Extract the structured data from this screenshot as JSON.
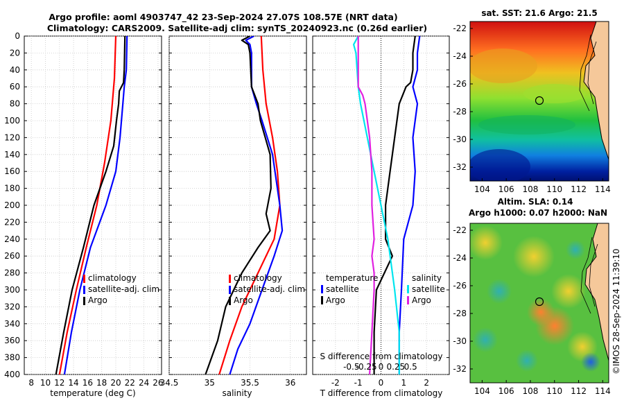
{
  "header": {
    "line1": "Argo profile: aoml 4903747_42 23-Sep-2024 27.07S 108.57E (NRT data)",
    "line2": "Climatology: CARS2009. Satellite-adj clim: synTS_20240923.nc (0.26d earlier)"
  },
  "colors": {
    "climatology": "#ff0000",
    "satellite": "#0000ff",
    "argo": "#000000",
    "sal_satellite": "#00e5ee",
    "sal_argo": "#e020e0"
  },
  "chart_data": [
    {
      "type": "line",
      "id": "temperature",
      "xlabel": "temperature (deg C)",
      "xlim": [
        7,
        26.5
      ],
      "xticks": [
        "8",
        "10",
        "12",
        "14",
        "16",
        "18",
        "20",
        "22",
        "24",
        "26"
      ],
      "ylim": [
        0,
        400
      ],
      "yticks": [
        "0",
        "20",
        "40",
        "60",
        "80",
        "100",
        "120",
        "140",
        "160",
        "180",
        "200",
        "220",
        "240",
        "260",
        "280",
        "300",
        "320",
        "340",
        "360",
        "380",
        "400"
      ],
      "legend": [
        "climatology",
        "satellite-adj. clim",
        "Argo"
      ],
      "series": [
        {
          "name": "climatology",
          "depth": [
            0,
            50,
            100,
            150,
            200,
            250,
            300,
            350,
            400
          ],
          "values": [
            20.0,
            19.8,
            19.3,
            18.4,
            17.3,
            15.8,
            14.4,
            13.1,
            12.0
          ]
        },
        {
          "name": "satellite-adj. clim",
          "depth": [
            0,
            40,
            60,
            80,
            120,
            160,
            200,
            250,
            300,
            350,
            400
          ],
          "values": [
            21.6,
            21.5,
            21.2,
            21.0,
            20.6,
            20.0,
            18.6,
            16.4,
            14.9,
            13.7,
            12.7
          ]
        },
        {
          "name": "Argo",
          "depth": [
            0,
            40,
            55,
            65,
            80,
            100,
            130,
            160,
            200,
            250,
            300,
            350,
            400
          ],
          "values": [
            21.3,
            21.2,
            21.1,
            20.5,
            20.4,
            20.1,
            19.7,
            18.6,
            16.9,
            15.4,
            13.8,
            12.6,
            11.5
          ]
        }
      ]
    },
    {
      "type": "line",
      "id": "salinity",
      "xlabel": "salinity",
      "xlim": [
        34.5,
        36.2
      ],
      "xticks": [
        "34.5",
        "35",
        "35.5",
        "36"
      ],
      "legend": [
        "climatology",
        "satellite-adj. clim",
        "Argo"
      ],
      "series": [
        {
          "name": "climatology",
          "depth": [
            0,
            40,
            80,
            120,
            160,
            200,
            240,
            280,
            320,
            360,
            400
          ],
          "values": [
            35.64,
            35.66,
            35.7,
            35.78,
            35.84,
            35.87,
            35.8,
            35.6,
            35.4,
            35.25,
            35.12
          ]
        },
        {
          "name": "satellite-adj. clim",
          "depth": [
            0,
            5,
            10,
            20,
            60,
            80,
            100,
            140,
            200,
            230,
            260,
            300,
            340,
            370,
            400
          ],
          "values": [
            35.55,
            35.45,
            35.5,
            35.52,
            35.52,
            35.58,
            35.65,
            35.78,
            35.87,
            35.9,
            35.8,
            35.65,
            35.5,
            35.35,
            35.25
          ]
        },
        {
          "name": "Argo",
          "depth": [
            0,
            5,
            10,
            20,
            60,
            80,
            100,
            140,
            180,
            210,
            230,
            250,
            280,
            320,
            360,
            400
          ],
          "values": [
            35.5,
            35.4,
            35.48,
            35.5,
            35.52,
            35.6,
            35.63,
            35.75,
            35.76,
            35.7,
            35.75,
            35.6,
            35.4,
            35.2,
            35.1,
            34.95
          ]
        }
      ]
    },
    {
      "type": "line",
      "id": "difference",
      "xlabel": "T difference from climatology",
      "xlabel_top": "S difference from climatology",
      "xlim": [
        -3,
        3
      ],
      "xticks": [
        "-2",
        "-1",
        "0",
        "1",
        "2"
      ],
      "xticks_top": [
        "-0.5",
        "-0.25",
        "0",
        "0.25",
        "0.5"
      ],
      "legend_temp_title": "temperature",
      "legend_sal_title": "salinity",
      "legend": [
        "satellite",
        "Argo"
      ],
      "series": [
        {
          "name": "T satellite",
          "depth": [
            0,
            20,
            40,
            60,
            80,
            120,
            160,
            200,
            240,
            300,
            350,
            400
          ],
          "values": [
            1.7,
            1.6,
            1.6,
            1.4,
            1.6,
            1.4,
            1.5,
            1.4,
            1.0,
            0.9,
            0.8,
            0.8
          ]
        },
        {
          "name": "T Argo",
          "depth": [
            0,
            20,
            40,
            55,
            60,
            80,
            120,
            160,
            200,
            240,
            260,
            300,
            350,
            400
          ],
          "values": [
            1.5,
            1.4,
            1.4,
            1.3,
            1.1,
            0.8,
            0.6,
            0.4,
            0.2,
            0.2,
            0.5,
            -0.2,
            -0.3,
            -0.3
          ]
        },
        {
          "name": "S satellite",
          "depth": [
            0,
            10,
            20,
            60,
            80,
            120,
            160,
            200,
            240,
            300,
            350,
            400
          ],
          "values": [
            -1.0,
            -1.2,
            -1.1,
            -1.0,
            -0.9,
            -0.6,
            -0.3,
            0.0,
            0.3,
            0.6,
            0.8,
            0.8
          ]
        },
        {
          "name": "S Argo",
          "depth": [
            0,
            20,
            60,
            70,
            80,
            120,
            160,
            200,
            240,
            260,
            280,
            300,
            350,
            400
          ],
          "values": [
            -1.0,
            -1.0,
            -1.0,
            -0.8,
            -0.7,
            -0.5,
            -0.4,
            -0.4,
            -0.3,
            -0.4,
            -0.3,
            -0.3,
            -0.4,
            -0.5
          ]
        }
      ]
    },
    {
      "type": "heatmap",
      "id": "sst_map",
      "title": "sat. SST: 21.6 Argo: 21.5",
      "xlim": [
        103,
        114.5
      ],
      "ylim": [
        -33,
        -21.5
      ],
      "xticks": [
        "104",
        "106",
        "108",
        "110",
        "112",
        "114"
      ],
      "yticks": [
        "-22",
        "-24",
        "-26",
        "-28",
        "-30",
        "-32"
      ],
      "marker": {
        "lon": 108.57,
        "lat": -27.07
      }
    },
    {
      "type": "heatmap",
      "id": "sla_map",
      "title_line1": "Altim. SLA: 0.14",
      "title_line2": "Argo h1000: 0.07 h2000: NaN",
      "xlim": [
        103,
        114.5
      ],
      "ylim": [
        -33,
        -21.5
      ],
      "xticks": [
        "104",
        "106",
        "108",
        "110",
        "112",
        "114"
      ],
      "yticks": [
        "-22",
        "-24",
        "-26",
        "-28",
        "-30",
        "-32"
      ],
      "marker": {
        "lon": 108.57,
        "lat": -27.07
      }
    }
  ],
  "credit": "©IMOS 28-Sep-2024 11:39:10"
}
